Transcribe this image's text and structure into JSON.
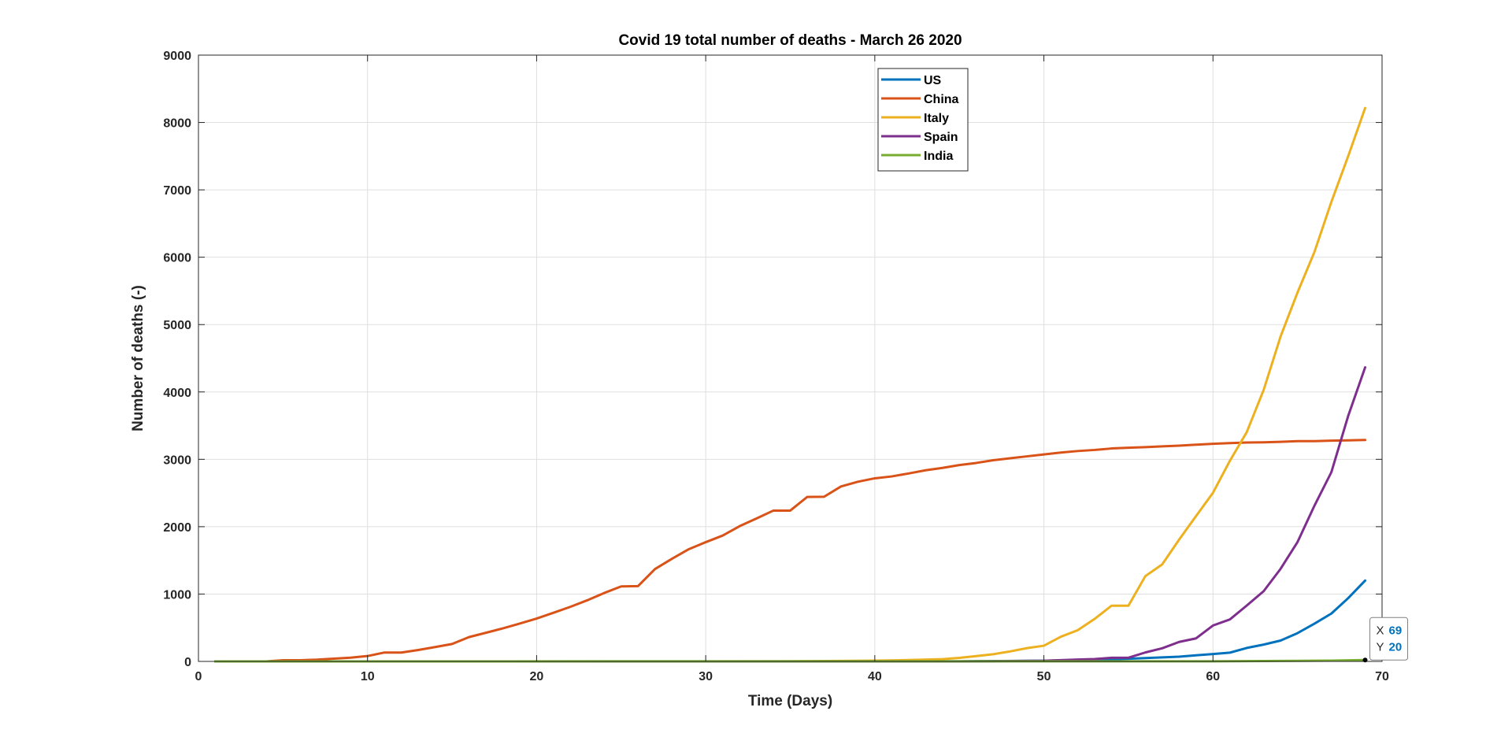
{
  "chart_data": {
    "type": "line",
    "title": "Covid 19 total number of deaths - March 26 2020",
    "xlabel": "Time (Days)",
    "ylabel": "Number of deaths (-)",
    "xlim": [
      0,
      70
    ],
    "ylim": [
      0,
      9000
    ],
    "xticks": [
      0,
      10,
      20,
      30,
      40,
      50,
      60,
      70
    ],
    "yticks": [
      0,
      1000,
      2000,
      3000,
      4000,
      5000,
      6000,
      7000,
      8000,
      9000
    ],
    "grid": true,
    "legend_position": "top-center",
    "series": [
      {
        "name": "US",
        "color": "#0072BD",
        "x": [
          1,
          40,
          45,
          50,
          52,
          54,
          55,
          56,
          57,
          58,
          59,
          60,
          61,
          62,
          63,
          64,
          65,
          66,
          67,
          68,
          69
        ],
        "y": [
          0,
          0,
          1,
          10,
          20,
          30,
          40,
          50,
          60,
          70,
          90,
          110,
          130,
          200,
          250,
          310,
          420,
          560,
          710,
          940,
          1200
        ]
      },
      {
        "name": "China",
        "color": "#D95319",
        "x": [
          1,
          2,
          3,
          4,
          5,
          6,
          7,
          8,
          9,
          10,
          11,
          12,
          13,
          14,
          15,
          16,
          17,
          18,
          19,
          20,
          21,
          22,
          23,
          24,
          25,
          26,
          27,
          28,
          29,
          30,
          31,
          32,
          33,
          34,
          35,
          36,
          37,
          38,
          39,
          40,
          41,
          42,
          43,
          44,
          45,
          46,
          47,
          48,
          49,
          50,
          51,
          52,
          53,
          54,
          55,
          56,
          57,
          58,
          59,
          60,
          61,
          62,
          63,
          64,
          65,
          66,
          67,
          68,
          69
        ],
        "y": [
          0,
          0,
          0,
          0,
          17,
          18,
          26,
          41,
          56,
          80,
          132,
          132,
          170,
          213,
          259,
          361,
          425,
          490,
          562,
          636,
          722,
          811,
          908,
          1016,
          1113,
          1118,
          1371,
          1523,
          1666,
          1770,
          1868,
          2007,
          2122,
          2239,
          2239,
          2441,
          2444,
          2597,
          2667,
          2718,
          2746,
          2790,
          2837,
          2872,
          2915,
          2946,
          2986,
          3015,
          3044,
          3072,
          3100,
          3123,
          3139,
          3161,
          3172,
          3180,
          3193,
          3203,
          3217,
          3230,
          3241,
          3249,
          3253,
          3260,
          3270,
          3270,
          3277,
          3281,
          3287
        ]
      },
      {
        "name": "Italy",
        "color": "#EDB120",
        "x": [
          1,
          30,
          35,
          38,
          40,
          42,
          44,
          45,
          46,
          47,
          48,
          49,
          50,
          51,
          52,
          53,
          54,
          55,
          56,
          57,
          58,
          59,
          60,
          61,
          62,
          63,
          64,
          65,
          66,
          67,
          68,
          69
        ],
        "y": [
          0,
          0,
          2,
          7,
          12,
          20,
          34,
          52,
          79,
          107,
          148,
          197,
          233,
          366,
          463,
          631,
          827,
          827,
          1266,
          1441,
          1809,
          2158,
          2503,
          2978,
          3405,
          4032,
          4825,
          5476,
          6077,
          6820,
          7503,
          8215
        ]
      },
      {
        "name": "Spain",
        "color": "#7E2F8E",
        "x": [
          1,
          45,
          50,
          52,
          53,
          54,
          55,
          56,
          57,
          58,
          59,
          60,
          61,
          62,
          63,
          64,
          65,
          66,
          67,
          68,
          69
        ],
        "y": [
          0,
          0,
          10,
          28,
          35,
          54,
          55,
          133,
          195,
          289,
          342,
          533,
          623,
          830,
          1043,
          1375,
          1772,
          2311,
          2808,
          3647,
          4365
        ]
      },
      {
        "name": "India",
        "color": "#77AC30",
        "x": [
          1,
          60,
          62,
          64,
          66,
          67,
          68,
          69
        ],
        "y": [
          0,
          2,
          4,
          7,
          10,
          12,
          16,
          20
        ]
      }
    ],
    "datatip": {
      "x_label": "X",
      "x_value": "69",
      "y_label": "Y",
      "y_value": "20"
    }
  }
}
